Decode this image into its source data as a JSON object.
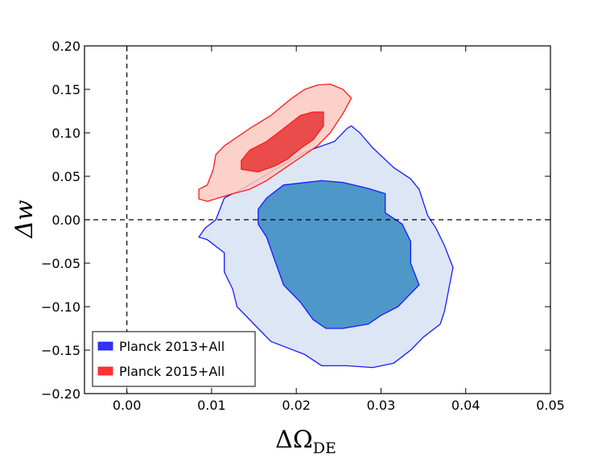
{
  "chart_data": {
    "type": "contour",
    "xlabel": "ΔΩ",
    "xlabel_sub": "DE",
    "ylabel": "Δw",
    "xlim": [
      -0.005,
      0.05
    ],
    "ylim": [
      -0.2,
      0.2
    ],
    "x_ticks": [
      0.0,
      0.01,
      0.02,
      0.03,
      0.04,
      0.05
    ],
    "x_tick_labels": [
      "0.00",
      "0.01",
      "0.02",
      "0.03",
      "0.04",
      "0.05"
    ],
    "y_ticks": [
      -0.2,
      -0.15,
      -0.1,
      -0.05,
      0.0,
      0.05,
      0.1,
      0.15,
      0.2
    ],
    "y_tick_labels": [
      "−0.20",
      "−0.15",
      "−0.10",
      "−0.05",
      "0.00",
      "0.05",
      "0.10",
      "0.15",
      "0.20"
    ],
    "reference_lines": [
      {
        "orientation": "vertical",
        "value": 0.0,
        "style": "dashed"
      },
      {
        "orientation": "horizontal",
        "value": 0.0,
        "style": "dashed"
      }
    ],
    "legend": {
      "location": "lower-left",
      "entries": [
        {
          "label": "Planck 2013+All",
          "color": "#3333ff"
        },
        {
          "label": "Planck 2015+All",
          "color": "#ff3333"
        }
      ]
    },
    "series": [
      {
        "name": "Planck 2013+All",
        "edge_color": "#1a1aff",
        "contours": [
          {
            "level": "95%",
            "fill": "#dce6f5",
            "points": [
              [
                0.0095,
                -0.023
              ],
              [
                0.0085,
                -0.02
              ],
              [
                0.0092,
                -0.01
              ],
              [
                0.0105,
                0.0
              ],
              [
                0.0115,
                0.025
              ],
              [
                0.0135,
                0.035
              ],
              [
                0.017,
                0.055
              ],
              [
                0.021,
                0.078
              ],
              [
                0.0245,
                0.09
              ],
              [
                0.026,
                0.105
              ],
              [
                0.0265,
                0.108
              ],
              [
                0.0275,
                0.1
              ],
              [
                0.029,
                0.083
              ],
              [
                0.0315,
                0.06
              ],
              [
                0.0335,
                0.047
              ],
              [
                0.0345,
                0.035
              ],
              [
                0.0355,
                0.005
              ],
              [
                0.0365,
                -0.01
              ],
              [
                0.0375,
                -0.03
              ],
              [
                0.0385,
                -0.055
              ],
              [
                0.0375,
                -0.105
              ],
              [
                0.037,
                -0.12
              ],
              [
                0.035,
                -0.135
              ],
              [
                0.0335,
                -0.15
              ],
              [
                0.0315,
                -0.165
              ],
              [
                0.029,
                -0.17
              ],
              [
                0.026,
                -0.168
              ],
              [
                0.023,
                -0.168
              ],
              [
                0.021,
                -0.155
              ],
              [
                0.017,
                -0.14
              ],
              [
                0.0155,
                -0.125
              ],
              [
                0.013,
                -0.1
              ],
              [
                0.0125,
                -0.08
              ],
              [
                0.0115,
                -0.06
              ],
              [
                0.0115,
                -0.038
              ]
            ]
          },
          {
            "level": "68%",
            "fill": "#4d97c9",
            "points": [
              [
                0.0155,
                0.012
              ],
              [
                0.0165,
                0.025
              ],
              [
                0.0185,
                0.04
              ],
              [
                0.023,
                0.045
              ],
              [
                0.0255,
                0.043
              ],
              [
                0.0285,
                0.036
              ],
              [
                0.0305,
                0.03
              ],
              [
                0.0305,
                0.008
              ],
              [
                0.0325,
                -0.005
              ],
              [
                0.0335,
                -0.025
              ],
              [
                0.0335,
                -0.05
              ],
              [
                0.0345,
                -0.075
              ],
              [
                0.032,
                -0.1
              ],
              [
                0.03,
                -0.11
              ],
              [
                0.0285,
                -0.12
              ],
              [
                0.0255,
                -0.125
              ],
              [
                0.0235,
                -0.125
              ],
              [
                0.022,
                -0.115
              ],
              [
                0.0205,
                -0.095
              ],
              [
                0.0185,
                -0.075
              ],
              [
                0.0175,
                -0.048
              ],
              [
                0.0165,
                -0.02
              ],
              [
                0.0155,
                -0.005
              ]
            ]
          }
        ]
      },
      {
        "name": "Planck 2015+All",
        "edge_color": "#ff1a1a",
        "contours": [
          {
            "level": "95%",
            "fill": "#fbc9bf",
            "alpha": 0.85,
            "points": [
              [
                0.0085,
                0.024
              ],
              [
                0.0085,
                0.035
              ],
              [
                0.0095,
                0.04
              ],
              [
                0.0102,
                0.058
              ],
              [
                0.0105,
                0.075
              ],
              [
                0.0115,
                0.085
              ],
              [
                0.0145,
                0.105
              ],
              [
                0.017,
                0.12
              ],
              [
                0.0195,
                0.14
              ],
              [
                0.021,
                0.15
              ],
              [
                0.0225,
                0.155
              ],
              [
                0.024,
                0.156
              ],
              [
                0.0255,
                0.15
              ],
              [
                0.0265,
                0.14
              ],
              [
                0.0255,
                0.122
              ],
              [
                0.024,
                0.1
              ],
              [
                0.0225,
                0.085
              ],
              [
                0.0195,
                0.065
              ],
              [
                0.0165,
                0.045
              ],
              [
                0.0145,
                0.035
              ],
              [
                0.0125,
                0.03
              ],
              [
                0.0108,
                0.025
              ],
              [
                0.0095,
                0.021
              ]
            ]
          },
          {
            "level": "68%",
            "fill": "#ea4b4b",
            "points": [
              [
                0.0135,
                0.058
              ],
              [
                0.0135,
                0.068
              ],
              [
                0.0145,
                0.08
              ],
              [
                0.0165,
                0.09
              ],
              [
                0.0185,
                0.105
              ],
              [
                0.0205,
                0.12
              ],
              [
                0.022,
                0.124
              ],
              [
                0.0232,
                0.124
              ],
              [
                0.0232,
                0.108
              ],
              [
                0.022,
                0.092
              ],
              [
                0.0205,
                0.082
              ],
              [
                0.019,
                0.07
              ],
              [
                0.0175,
                0.062
              ],
              [
                0.0155,
                0.055
              ]
            ]
          }
        ]
      }
    ]
  }
}
